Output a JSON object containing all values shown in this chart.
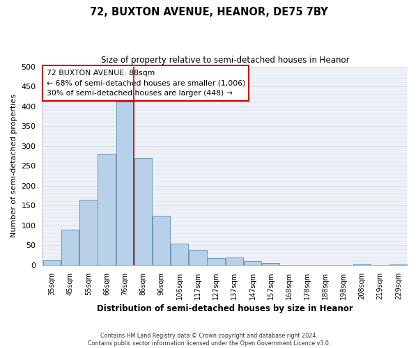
{
  "title": "72, BUXTON AVENUE, HEANOR, DE75 7BY",
  "subtitle": "Size of property relative to semi-detached houses in Heanor",
  "xlabel": "Distribution of semi-detached houses by size in Heanor",
  "ylabel": "Number of semi-detached properties",
  "bar_labels": [
    "35sqm",
    "45sqm",
    "55sqm",
    "66sqm",
    "76sqm",
    "86sqm",
    "96sqm",
    "106sqm",
    "117sqm",
    "127sqm",
    "137sqm",
    "147sqm",
    "157sqm",
    "168sqm",
    "178sqm",
    "188sqm",
    "198sqm",
    "208sqm",
    "219sqm",
    "229sqm"
  ],
  "bar_values": [
    12,
    90,
    165,
    280,
    412,
    270,
    125,
    55,
    38,
    17,
    19,
    10,
    5,
    0,
    0,
    0,
    0,
    3,
    0,
    2
  ],
  "bar_color": "#b8d0e8",
  "bar_edgecolor": "#6699bb",
  "background_color": "#eef2f8",
  "grid_color": "#d0d8e8",
  "ylim": [
    0,
    500
  ],
  "yticks": [
    0,
    50,
    100,
    150,
    200,
    250,
    300,
    350,
    400,
    450,
    500
  ],
  "property_line_value": 88,
  "property_line_color": "#cc0000",
  "annotation_title": "72 BUXTON AVENUE: 88sqm",
  "annotation_line1": "← 68% of semi-detached houses are smaller (1,006)",
  "annotation_line2": "30% of semi-detached houses are larger (448) →",
  "annotation_box_edgecolor": "#cc0000",
  "footer_line1": "Contains HM Land Registry data © Crown copyright and database right 2024.",
  "footer_line2": "Contains public sector information licensed under the Open Government Licence v3.0."
}
